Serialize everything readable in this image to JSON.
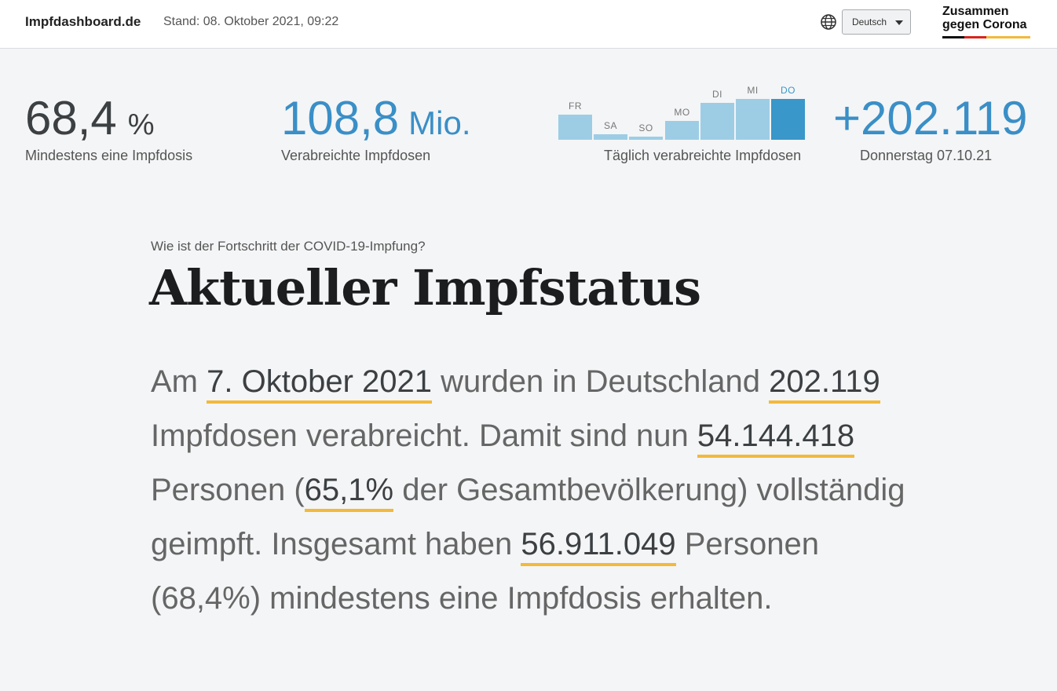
{
  "header": {
    "brand": "Impfdashboard.de",
    "stand": "Stand: 08. Oktober 2021, 09:22",
    "language": "Deutsch",
    "logo_line1": "Zusammen",
    "logo_line2": "gegen Corona",
    "globe_icon": "globe-icon"
  },
  "kpis": {
    "first_dose_value": "68,4",
    "first_dose_unit": "%",
    "first_dose_label": "Mindestens eine Impfdosis",
    "total_doses_value": "108,8",
    "total_doses_unit": "Mio.",
    "total_doses_label": "Verabreichte Impfdosen",
    "daily_label": "Täglich verabreichte Impfdosen",
    "daily_value": "+202.119",
    "daily_date": "Donnerstag 07.10.21"
  },
  "daily_bars": [
    {
      "day": "FR",
      "level": 0.41,
      "active": false
    },
    {
      "day": "SA",
      "level": 0.09,
      "active": false
    },
    {
      "day": "SO",
      "level": 0.05,
      "active": false
    },
    {
      "day": "MO",
      "level": 0.31,
      "active": false
    },
    {
      "day": "DI",
      "level": 0.6,
      "active": false
    },
    {
      "day": "MI",
      "level": 0.67,
      "active": false
    },
    {
      "day": "DO",
      "level": 0.67,
      "active": true
    }
  ],
  "main": {
    "eyebrow": "Wie ist der Fortschritt der COVID-19-Impfung?",
    "title": "Aktueller Impfstatus",
    "text_1": "Am ",
    "date": "7. Oktober 2021",
    "text_2": " wurden in Deutschland ",
    "daily_doses": "202.119",
    "text_3": " Impfdosen verabreicht. Damit sind nun ",
    "fully_vaccinated": "54.144.418",
    "text_4": " Personen (",
    "fully_pct": "65,1%",
    "text_5": " der Gesamtbevölkerung) vollständig geimpft. Insgesamt haben ",
    "at_least_one": "56.911.049",
    "text_6": " Personen (68,4%) mindestens eine Impfdosis erhalten."
  },
  "colors": {
    "accent_blue": "#3a8fc7",
    "bar_light": "#9dcde5",
    "highlight_underline": "#f2b93b"
  }
}
